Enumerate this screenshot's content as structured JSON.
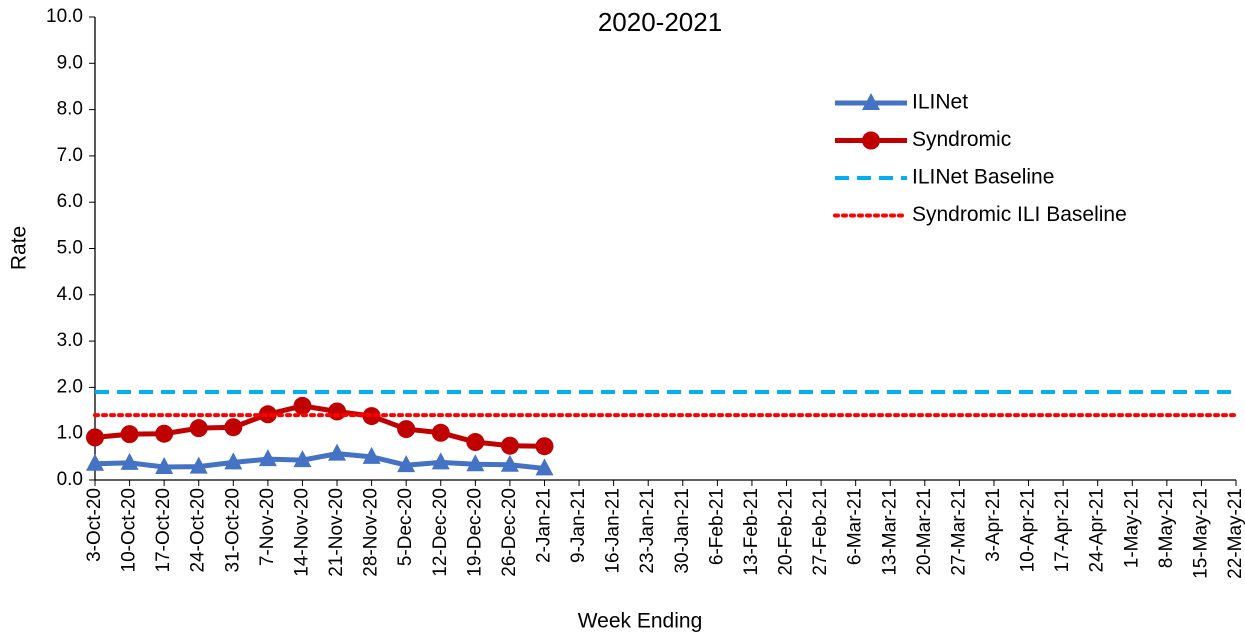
{
  "chart_data": {
    "type": "line",
    "title": "2020-2021",
    "x_label": "Week Ending",
    "y_label": "Rate",
    "categories": [
      "3-Oct-20",
      "10-Oct-20",
      "17-Oct-20",
      "24-Oct-20",
      "31-Oct-20",
      "7-Nov-20",
      "14-Nov-20",
      "21-Nov-20",
      "28-Nov-20",
      "5-Dec-20",
      "12-Dec-20",
      "19-Dec-20",
      "26-Dec-20",
      "2-Jan-21",
      "9-Jan-21",
      "16-Jan-21",
      "23-Jan-21",
      "30-Jan-21",
      "6-Feb-21",
      "13-Feb-21",
      "20-Feb-21",
      "27-Feb-21",
      "6-Mar-21",
      "13-Mar-21",
      "20-Mar-21",
      "27-Mar-21",
      "3-Apr-21",
      "10-Apr-21",
      "17-Apr-21",
      "24-Apr-21",
      "1-May-21",
      "8-May-21",
      "15-May-21",
      "22-May-21"
    ],
    "series": [
      {
        "name": "ILINet",
        "color": "#4472c4",
        "marker": "triangle",
        "style": "solid",
        "values": [
          0.35,
          0.37,
          0.28,
          0.29,
          0.38,
          0.45,
          0.43,
          0.57,
          0.5,
          0.32,
          0.38,
          0.34,
          0.33,
          0.25,
          null,
          null,
          null,
          null,
          null,
          null,
          null,
          null,
          null,
          null,
          null,
          null,
          null,
          null,
          null,
          null,
          null,
          null,
          null,
          null
        ]
      },
      {
        "name": "Syndromic",
        "color": "#c00000",
        "marker": "circle",
        "style": "solid",
        "values": [
          0.92,
          0.99,
          1.0,
          1.12,
          1.14,
          1.42,
          1.6,
          1.48,
          1.38,
          1.1,
          1.02,
          0.82,
          0.74,
          0.73,
          null,
          null,
          null,
          null,
          null,
          null,
          null,
          null,
          null,
          null,
          null,
          null,
          null,
          null,
          null,
          null,
          null,
          null,
          null,
          null
        ]
      },
      {
        "name": "ILINet Baseline",
        "color": "#00b0f0",
        "marker": "none",
        "style": "dashed",
        "values": [
          1.9,
          1.9,
          1.9,
          1.9,
          1.9,
          1.9,
          1.9,
          1.9,
          1.9,
          1.9,
          1.9,
          1.9,
          1.9,
          1.9,
          1.9,
          1.9,
          1.9,
          1.9,
          1.9,
          1.9,
          1.9,
          1.9,
          1.9,
          1.9,
          1.9,
          1.9,
          1.9,
          1.9,
          1.9,
          1.9,
          1.9,
          1.9,
          1.9,
          1.9
        ]
      },
      {
        "name": "Syndromic ILI Baseline",
        "color": "#ff0000",
        "marker": "none",
        "style": "dotted",
        "values": [
          1.4,
          1.4,
          1.4,
          1.4,
          1.4,
          1.4,
          1.4,
          1.4,
          1.4,
          1.4,
          1.4,
          1.4,
          1.4,
          1.4,
          1.4,
          1.4,
          1.4,
          1.4,
          1.4,
          1.4,
          1.4,
          1.4,
          1.4,
          1.4,
          1.4,
          1.4,
          1.4,
          1.4,
          1.4,
          1.4,
          1.4,
          1.4,
          1.4,
          1.4
        ]
      }
    ],
    "ylim": [
      0,
      10
    ],
    "yticks": [
      {
        "value": 0,
        "label": "0.0"
      },
      {
        "value": 1,
        "label": "1.0"
      },
      {
        "value": 2,
        "label": "2.0"
      },
      {
        "value": 3,
        "label": "3.0"
      },
      {
        "value": 4,
        "label": "4.0"
      },
      {
        "value": 5,
        "label": "5.0"
      },
      {
        "value": 6,
        "label": "6.0"
      },
      {
        "value": 7,
        "label": "7.0"
      },
      {
        "value": 8,
        "label": "8.0"
      },
      {
        "value": 9,
        "label": "9.0"
      },
      {
        "value": 10,
        "label": "10.0"
      }
    ],
    "grid": false,
    "legend": "upper right"
  }
}
